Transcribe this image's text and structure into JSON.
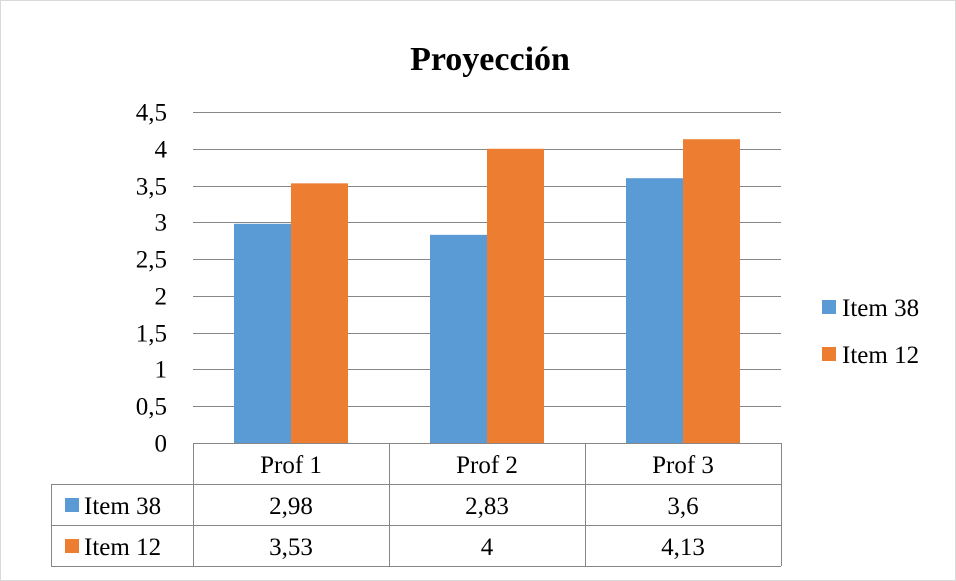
{
  "chart_data": {
    "type": "bar",
    "title": "Proyección",
    "categories": [
      "Prof 1",
      "Prof 2",
      "Prof 3"
    ],
    "series": [
      {
        "name": "Item 38",
        "values": [
          2.98,
          2.83,
          3.6
        ],
        "color": "#5B9BD5",
        "labels": [
          "2,98",
          "2,83",
          "3,6"
        ]
      },
      {
        "name": "Item 12",
        "values": [
          3.53,
          4,
          4.13
        ],
        "color": "#ED7D31",
        "labels": [
          "3,53",
          "4",
          "4,13"
        ]
      }
    ],
    "ylim": [
      0,
      4.5
    ],
    "yticks": [
      0,
      0.5,
      1,
      1.5,
      2,
      2.5,
      3,
      3.5,
      4,
      4.5
    ],
    "ytick_labels": [
      "0",
      "0,5",
      "1",
      "1,5",
      "2",
      "2,5",
      "3",
      "3,5",
      "4",
      "4,5"
    ],
    "grid": true,
    "legend_position": "right",
    "data_table": true
  }
}
